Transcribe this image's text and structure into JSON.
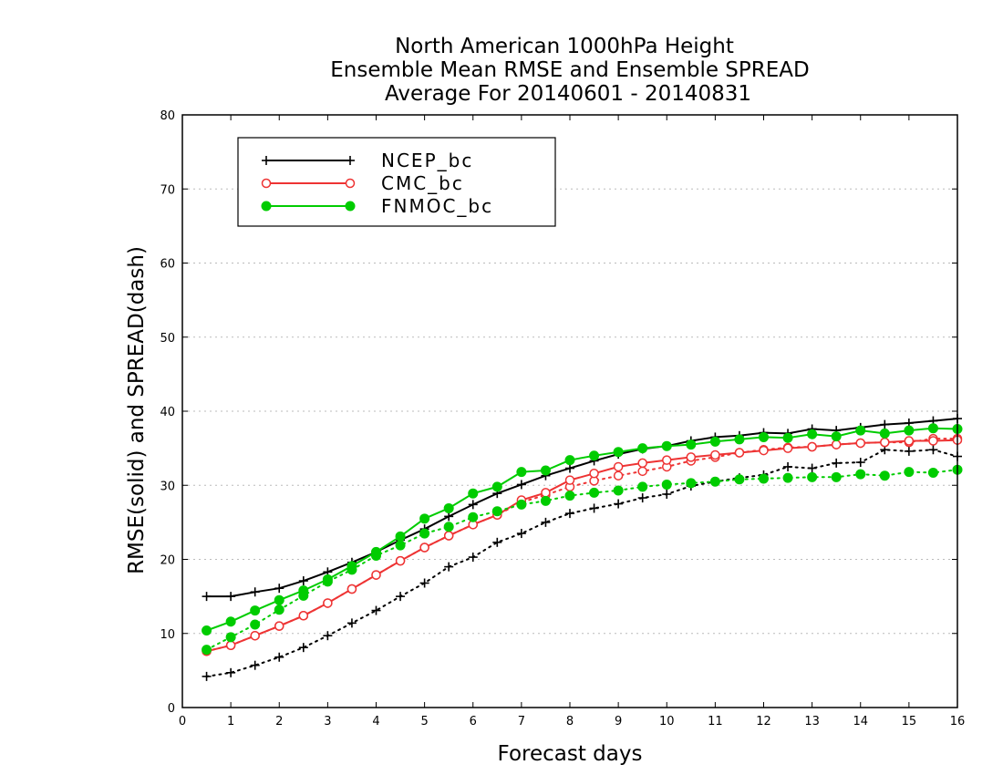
{
  "chart_data": {
    "type": "line",
    "title": [
      "North American 1000hPa Height",
      "Ensemble Mean RMSE and Ensemble SPREAD",
      "Average For 20140601 - 20140831"
    ],
    "xlabel": "Forecast days",
    "ylabel": "RMSE(solid) and SPREAD(dash)",
    "xlim": [
      0,
      16
    ],
    "ylim": [
      0,
      80
    ],
    "xticks": [
      "0",
      "1",
      "2",
      "3",
      "4",
      "5",
      "6",
      "7",
      "8",
      "9",
      "10",
      "11",
      "12",
      "13",
      "14",
      "15",
      "16"
    ],
    "yticks": [
      "0",
      "10",
      "20",
      "30",
      "40",
      "50",
      "60",
      "70",
      "80"
    ],
    "grid": "horizontal dotted",
    "legend_placement": "top-left",
    "x": [
      0.5,
      1,
      1.5,
      2,
      2.5,
      3,
      3.5,
      4,
      4.5,
      5,
      5.5,
      6,
      6.5,
      7,
      7.5,
      8,
      8.5,
      9,
      9.5,
      10,
      10.5,
      11,
      11.5,
      12,
      12.5,
      13,
      13.5,
      14,
      14.5,
      15,
      15.5,
      16
    ],
    "series": [
      {
        "name": "NCEP_bc",
        "color": "#000000",
        "marker": "plus",
        "rmse": [
          15,
          15,
          15.6,
          16.1,
          17.1,
          18.3,
          19.6,
          21,
          22.6,
          24.1,
          25.8,
          27.4,
          28.9,
          30.1,
          31.3,
          32.3,
          33.3,
          34.2,
          34.9,
          35.3,
          36,
          36.5,
          36.7,
          37.1,
          37,
          37.6,
          37.4,
          37.8,
          38.2,
          38.4,
          38.7,
          39
        ],
        "spread": [
          4.2,
          4.7,
          5.7,
          6.8,
          8.1,
          9.7,
          11.4,
          13.1,
          15,
          16.8,
          19,
          20.3,
          22.3,
          23.5,
          25,
          26.2,
          26.9,
          27.5,
          28.3,
          28.8,
          29.9,
          30.5,
          31,
          31.4,
          32.5,
          32.3,
          33,
          33.1,
          34.8,
          34.6,
          34.8,
          33.9
        ]
      },
      {
        "name": "CMC_bc",
        "color": "#ee3333",
        "marker": "open-circle",
        "rmse": [
          7.6,
          8.4,
          9.7,
          11,
          12.4,
          14.1,
          16,
          17.9,
          19.8,
          21.6,
          23.2,
          24.7,
          26,
          28,
          29,
          30.7,
          31.6,
          32.5,
          33,
          33.4,
          33.8,
          34.1,
          34.4,
          34.7,
          35,
          35.2,
          35.5,
          35.7,
          35.8,
          36,
          36,
          36.1
        ],
        "spread": [
          7.6,
          8.4,
          9.7,
          11,
          12.4,
          14.1,
          16,
          17.9,
          19.8,
          21.6,
          23.2,
          24.7,
          26,
          27.7,
          28.7,
          29.8,
          30.6,
          31.3,
          31.9,
          32.5,
          33.3,
          33.8,
          34.4,
          34.8,
          35.1,
          35.2,
          35.5,
          35.7,
          35.8,
          35.8,
          36.3,
          36.3
        ]
      },
      {
        "name": "FNMOC_bc",
        "color": "#00cc00",
        "marker": "filled-circle",
        "rmse": [
          10.4,
          11.6,
          13.1,
          14.5,
          15.8,
          17.3,
          19.1,
          21,
          23.1,
          25.5,
          26.9,
          28.9,
          29.8,
          31.8,
          32,
          33.4,
          34,
          34.5,
          35,
          35.3,
          35.5,
          35.9,
          36.2,
          36.5,
          36.4,
          36.9,
          36.6,
          37.4,
          37,
          37.4,
          37.7,
          37.6
        ],
        "spread": [
          7.8,
          9.5,
          11.2,
          13.2,
          15.1,
          17,
          18.6,
          20.5,
          21.9,
          23.5,
          24.4,
          25.7,
          26.5,
          27.4,
          27.9,
          28.6,
          29,
          29.3,
          29.8,
          30.1,
          30.3,
          30.5,
          30.8,
          30.9,
          31,
          31.1,
          31.1,
          31.5,
          31.3,
          31.8,
          31.7,
          32.1
        ]
      }
    ]
  }
}
